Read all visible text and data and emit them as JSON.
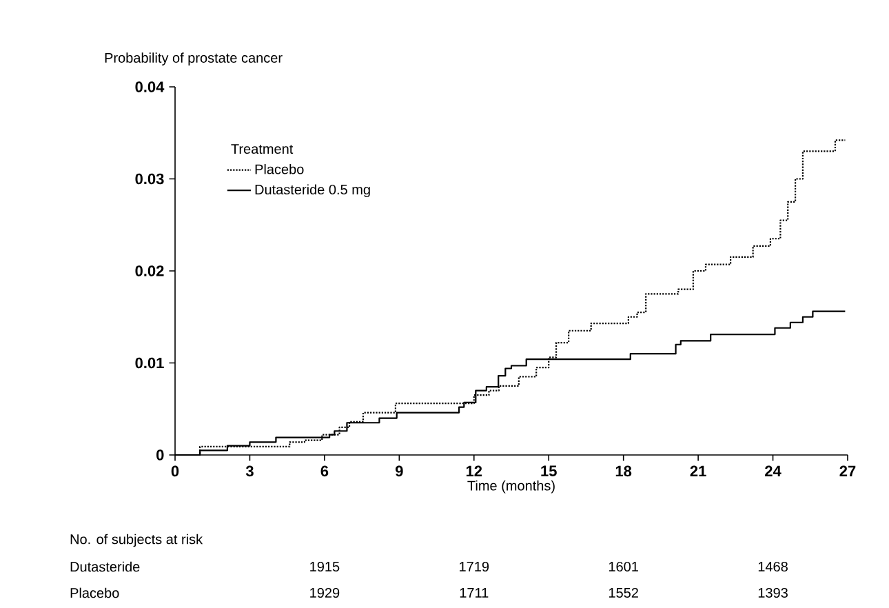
{
  "chart_data": {
    "type": "step",
    "xlabel": "Time (months)",
    "ylabel": "Probability of prostate cancer",
    "legend_title": "Treatment",
    "xlim": [
      0,
      27
    ],
    "xticks": [
      0,
      3,
      6,
      9,
      12,
      15,
      18,
      21,
      24,
      27
    ],
    "ylim": [
      0,
      0.04
    ],
    "yticks": [
      0,
      0.01,
      0.02,
      0.03,
      0.04
    ],
    "legend": "top left",
    "grid": false,
    "marker": "none",
    "series": [
      {
        "name": "Placebo",
        "color": "#000000",
        "line_style": "dotted",
        "x": [
          0,
          1.0,
          3.0,
          4.6,
          5.2,
          5.9,
          6.6,
          7.0,
          7.55,
          8.85,
          11.5,
          12.0,
          12.6,
          13.0,
          13.8,
          14.5,
          15.0,
          15.3,
          15.8,
          16.7,
          18.2,
          18.55,
          18.9,
          20.2,
          20.8,
          21.3,
          22.3,
          23.2,
          23.9,
          24.3,
          24.6,
          24.9,
          25.2,
          26.5,
          26.9
        ],
        "values": [
          0,
          0.0009,
          0.0009,
          0.0014,
          0.0016,
          0.0022,
          0.003,
          0.0036,
          0.0046,
          0.0056,
          0.0056,
          0.0065,
          0.007,
          0.0075,
          0.0085,
          0.0095,
          0.0106,
          0.0122,
          0.0135,
          0.0143,
          0.015,
          0.0155,
          0.0175,
          0.018,
          0.02,
          0.0207,
          0.0215,
          0.0227,
          0.0235,
          0.0255,
          0.0275,
          0.03,
          0.033,
          0.0342,
          0.0342
        ]
      },
      {
        "name": "Dutasteride 0.5 mg",
        "color": "#000000",
        "line_style": "solid",
        "x": [
          0,
          1.0,
          2.1,
          3.0,
          4.05,
          6.2,
          6.4,
          6.9,
          8.2,
          8.9,
          11.4,
          11.6,
          12.07,
          12.5,
          12.98,
          13.26,
          13.5,
          14.1,
          18.28,
          20.1,
          20.3,
          21.5,
          24.08,
          24.7,
          25.2,
          25.6,
          26.9
        ],
        "values": [
          0,
          0.0005,
          0.001,
          0.0014,
          0.0019,
          0.0022,
          0.0026,
          0.0035,
          0.004,
          0.0046,
          0.0052,
          0.0057,
          0.007,
          0.0074,
          0.0086,
          0.0094,
          0.0097,
          0.0104,
          0.011,
          0.012,
          0.0124,
          0.0131,
          0.0138,
          0.0144,
          0.015,
          0.0156,
          0.0156
        ]
      }
    ],
    "annotations": [
      "No. of subjects at risk",
      "Dutasteride",
      "1915",
      "1719",
      "1601",
      "1468",
      "Placebo",
      "1929",
      "1711",
      "1552",
      "1393"
    ]
  }
}
